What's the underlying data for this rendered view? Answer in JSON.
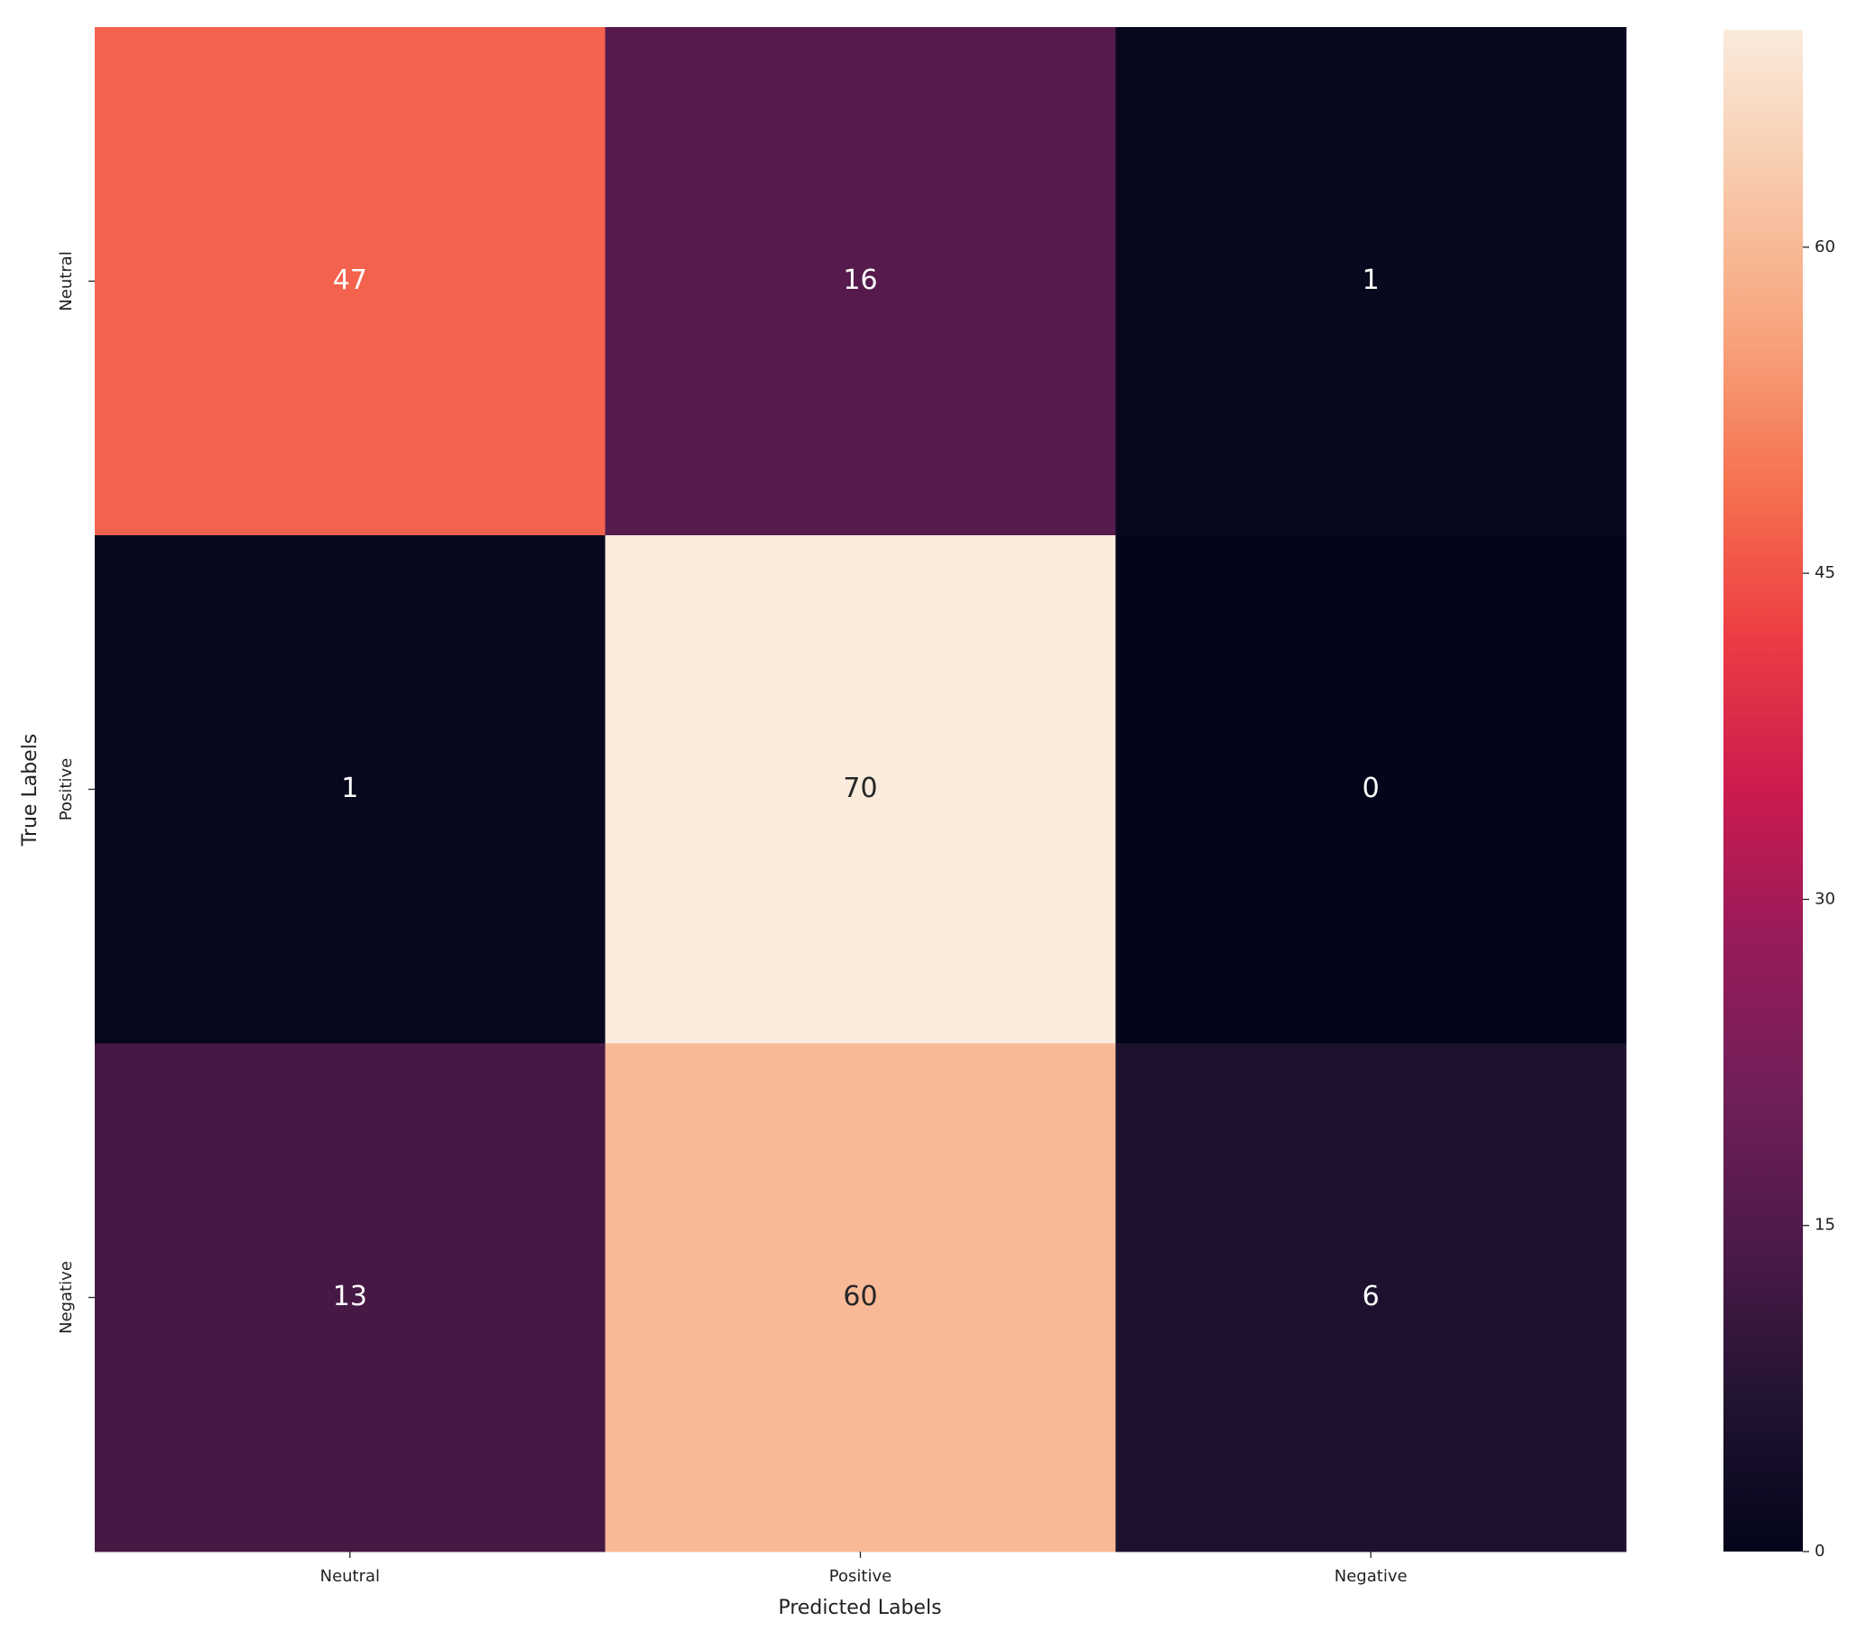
{
  "chart_data": {
    "type": "heatmap",
    "x_categories": [
      "Neutral",
      "Positive",
      "Negative"
    ],
    "y_categories": [
      "Neutral",
      "Positive",
      "Negative"
    ],
    "values": [
      [
        47,
        16,
        1
      ],
      [
        1,
        70,
        0
      ],
      [
        13,
        60,
        6
      ]
    ],
    "xlabel": "Predicted Labels",
    "ylabel": "True Labels",
    "clim": [
      0,
      70
    ],
    "cticks": [
      0,
      15,
      30,
      45,
      60
    ],
    "colormap": [
      "#03051a",
      "#221331",
      "#4c1a48",
      "#701f57",
      "#961b5a",
      "#cb1b4f",
      "#ec3c43",
      "#f6714f",
      "#f7a47d",
      "#f8c9aa",
      "#faebdd"
    ]
  }
}
